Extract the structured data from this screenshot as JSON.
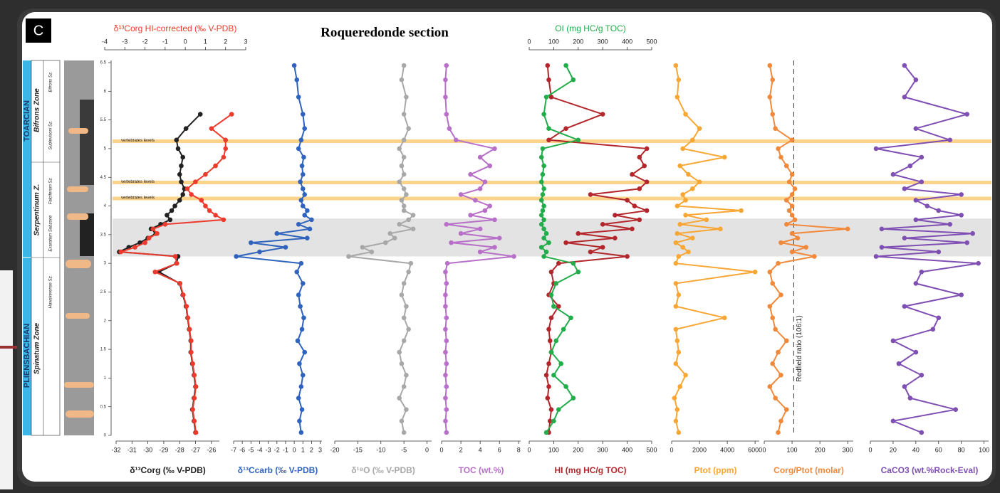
{
  "panel_letter": "C",
  "title": "Roqueredonde section",
  "stratigraphy": {
    "stages": [
      "TOARCIAN",
      "PLIENSBACHIAN"
    ],
    "zones": [
      "Bifrons Zone",
      "Serpentinum Z.",
      "Spinatum Zone"
    ],
    "subzones": [
      "Bifrons Sz.",
      "Sublevisoni Sz.",
      "Falciferum Sz.",
      "Exaratum Subzone",
      "Hawskerense Sz."
    ]
  },
  "depth": {
    "ylim": [
      0,
      6.5
    ],
    "yticks": [
      0,
      0.5,
      1,
      1.5,
      2,
      2.5,
      3,
      3.5,
      4,
      4.5,
      5,
      5.5,
      6,
      6.5
    ],
    "values": [
      0.05,
      0.25,
      0.45,
      0.65,
      0.85,
      1.05,
      1.25,
      1.45,
      1.65,
      1.85,
      2.05,
      2.25,
      2.45,
      2.65,
      2.85,
      3.0,
      3.12,
      3.2,
      3.28,
      3.36,
      3.44,
      3.52,
      3.6,
      3.68,
      3.76,
      3.84,
      3.92,
      4.0,
      4.1,
      4.2,
      4.3,
      4.42,
      4.55,
      4.7,
      4.85,
      5.0,
      5.15,
      5.35,
      5.6,
      5.9,
      6.2,
      6.45
    ]
  },
  "bands": {
    "gray": [
      3.12,
      3.78
    ],
    "vertebrate_levels": [
      5.13,
      4.41,
      4.13
    ],
    "vertebrate_label": "vertebrates levels"
  },
  "chart_data": [
    {
      "type": "line",
      "xlabel": "δ¹³Corg (‰ V-PDB)",
      "xlim": [
        -32,
        -25.5
      ],
      "xticks": [
        -32,
        -31,
        -30,
        -29,
        -28,
        -27,
        -26
      ],
      "x2label": "δ¹³Corg HI-corrected (‰ V-PDB)",
      "x2lim": [
        -4,
        3
      ],
      "x2ticks": [
        -4,
        -3,
        -2,
        -1,
        0,
        1,
        2,
        3
      ],
      "series": [
        {
          "color": "#222222",
          "values": [
            -27.0,
            -27.1,
            -27.2,
            -27.1,
            -27.0,
            -27.1,
            -27.2,
            -27.3,
            -27.3,
            -27.4,
            -27.5,
            -27.6,
            -27.8,
            -28.0,
            -29.3,
            -28.2,
            -28.1,
            -31.8,
            -31.2,
            -30.5,
            -30.0,
            -29.5,
            -29.8,
            -29.2,
            -28.6,
            -28.8,
            -28.5,
            -28.3,
            -28.0,
            -27.8,
            -27.7,
            -27.9,
            -28.0,
            -27.9,
            -27.8,
            -28.1,
            -28.2,
            -27.6,
            -26.7,
            null,
            null,
            null
          ]
        },
        {
          "color": "#ee3a2c",
          "axis": "x2",
          "values": [
            0.53,
            0.45,
            0.37,
            0.45,
            0.53,
            0.45,
            0.37,
            0.29,
            0.29,
            0.21,
            0.13,
            0.06,
            -0.1,
            -0.26,
            -1.5,
            -0.42,
            -0.5,
            -3.2,
            -2.5,
            -2.0,
            -1.8,
            -1.4,
            -1.6,
            -1.0,
            1.9,
            1.5,
            1.2,
            1.0,
            0.8,
            0.3,
            0.1,
            0.5,
            1.0,
            1.5,
            1.9,
            2.0,
            2.0,
            1.3,
            2.3,
            null,
            null,
            null
          ]
        }
      ]
    },
    {
      "type": "line",
      "xlabel": "δ¹³Ccarb (‰ V-PDB)",
      "xlim": [
        -7,
        3.2
      ],
      "xticks": [
        -7,
        -6,
        -5,
        -4,
        -3,
        -2,
        -1,
        0,
        1,
        2,
        3
      ],
      "series": [
        {
          "color": "#2f63bd",
          "values": [
            0.8,
            0.6,
            0.9,
            0.5,
            0.8,
            1.0,
            0.6,
            1.2,
            0.4,
            0.9,
            1.1,
            0.7,
            0.5,
            1.0,
            0.3,
            0.8,
            -6.7,
            -4,
            -1,
            -5,
            1.5,
            -2,
            1.8,
            0.5,
            2.0,
            1.2,
            1.5,
            1.0,
            0.8,
            1.2,
            1.0,
            0.7,
            1.0,
            0.9,
            1.1,
            0.5,
            0.8,
            1.2,
            1.0,
            0.5,
            0.3,
            0.0
          ]
        }
      ]
    },
    {
      "type": "line",
      "xlabel": "δ¹⁸O (‰ V-PDB)",
      "xlim": [
        -20,
        1
      ],
      "xticks": [
        -20,
        -15,
        -10,
        -5,
        0
      ],
      "series": [
        {
          "color": "#a8a8a8",
          "values": [
            -5,
            -5.5,
            -4.5,
            -6,
            -5,
            -4.5,
            -5.5,
            -6,
            -5,
            -4,
            -5,
            -4.5,
            -5.5,
            -5,
            -4,
            -3.5,
            -17,
            -12,
            -14,
            -9,
            -7,
            -8,
            -3,
            -6,
            -4,
            -3,
            -5,
            -5,
            -5.5,
            -4.5,
            -5,
            -6,
            -5,
            -5.5,
            -5,
            -6,
            -5,
            -4,
            -5,
            -4.5,
            -5.5,
            -5
          ]
        }
      ]
    },
    {
      "type": "line",
      "xlabel": "TOC (wt.%)",
      "xlim": [
        0,
        8.2
      ],
      "xticks": [
        0,
        2,
        4,
        6,
        8
      ],
      "series": [
        {
          "color": "#b76fc8",
          "values": [
            0.5,
            0.4,
            0.5,
            0.4,
            0.5,
            0.4,
            0.5,
            0.4,
            0.5,
            0.4,
            0.5,
            0.4,
            0.4,
            0.5,
            0.4,
            0.6,
            7.5,
            4,
            5.5,
            1,
            6,
            2,
            4,
            0.5,
            5.5,
            3,
            4.5,
            5,
            3.5,
            2,
            4,
            4.5,
            3,
            5,
            4,
            5.5,
            1.5,
            0.8,
            0.5,
            0.4,
            0.4,
            0.5
          ]
        }
      ]
    },
    {
      "type": "line",
      "xlabel": "HI (mg HC/g TOC)",
      "xlim": [
        0,
        500
      ],
      "xticks": [
        0,
        100,
        200,
        300,
        400,
        500
      ],
      "x2label": "OI (mg HC/g TOC)",
      "x2lim": [
        0,
        500
      ],
      "x2ticks": [
        0,
        100,
        200,
        300,
        400,
        500
      ],
      "series": [
        {
          "color": "#b3272c",
          "values": [
            80,
            85,
            90,
            75,
            80,
            70,
            80,
            90,
            85,
            80,
            90,
            120,
            80,
            100,
            90,
            120,
            400,
            250,
            300,
            150,
            350,
            200,
            420,
            300,
            450,
            350,
            480,
            430,
            400,
            250,
            450,
            480,
            420,
            470,
            450,
            480,
            80,
            150,
            300,
            90,
            80,
            75
          ]
        },
        {
          "color": "#20ad4a",
          "axis": "x2",
          "values": [
            70,
            100,
            120,
            180,
            150,
            100,
            130,
            90,
            110,
            140,
            170,
            100,
            90,
            110,
            200,
            180,
            60,
            70,
            50,
            80,
            60,
            70,
            60,
            50,
            60,
            50,
            55,
            60,
            50,
            55,
            60,
            50,
            55,
            60,
            50,
            55,
            200,
            80,
            60,
            70,
            180,
            150
          ]
        }
      ]
    },
    {
      "type": "line",
      "xlabel": "Ptot (ppm)",
      "xlim": [
        0,
        6300
      ],
      "xticks": [
        0,
        2000,
        4000,
        6000
      ],
      "series": [
        {
          "color": "#f8a634",
          "values": [
            500,
            300,
            400,
            200,
            600,
            1000,
            300,
            500,
            400,
            300,
            3800,
            300,
            500,
            300,
            6000,
            300,
            500,
            1200,
            800,
            300,
            1500,
            400,
            3500,
            600,
            2500,
            1000,
            5000,
            400,
            1000,
            800,
            1500,
            2000,
            1200,
            600,
            3800,
            800,
            1500,
            2000,
            1000,
            400,
            500,
            300
          ]
        }
      ]
    },
    {
      "type": "line",
      "xlabel": "Corg/Ptot (molar)",
      "xlim": [
        0,
        320
      ],
      "xticks": [
        0,
        100,
        200,
        300
      ],
      "redfield": {
        "value": 106,
        "label": "Redfield ratio (106:1)"
      },
      "series": [
        {
          "color": "#f2893a",
          "values": [
            50,
            60,
            80,
            40,
            20,
            60,
            30,
            50,
            80,
            40,
            30,
            20,
            60,
            30,
            20,
            50,
            180,
            100,
            150,
            60,
            120,
            100,
            300,
            80,
            110,
            100,
            90,
            100,
            80,
            100,
            110,
            90,
            100,
            80,
            60,
            50,
            100,
            40,
            30,
            20,
            30,
            20
          ]
        }
      ]
    },
    {
      "type": "line",
      "xlabel": "CaCO3 (wt.%Rock-Eval)",
      "xlim": [
        0,
        104
      ],
      "xticks": [
        0,
        20,
        40,
        60,
        80,
        100
      ],
      "series": [
        {
          "color": "#7f4fb3",
          "values": [
            45,
            20,
            75,
            35,
            30,
            45,
            25,
            40,
            20,
            55,
            60,
            30,
            80,
            40,
            45,
            95,
            5,
            60,
            10,
            85,
            30,
            90,
            10,
            70,
            40,
            80,
            60,
            50,
            40,
            80,
            30,
            45,
            20,
            35,
            45,
            5,
            70,
            40,
            85,
            30,
            40,
            30
          ]
        }
      ]
    }
  ]
}
